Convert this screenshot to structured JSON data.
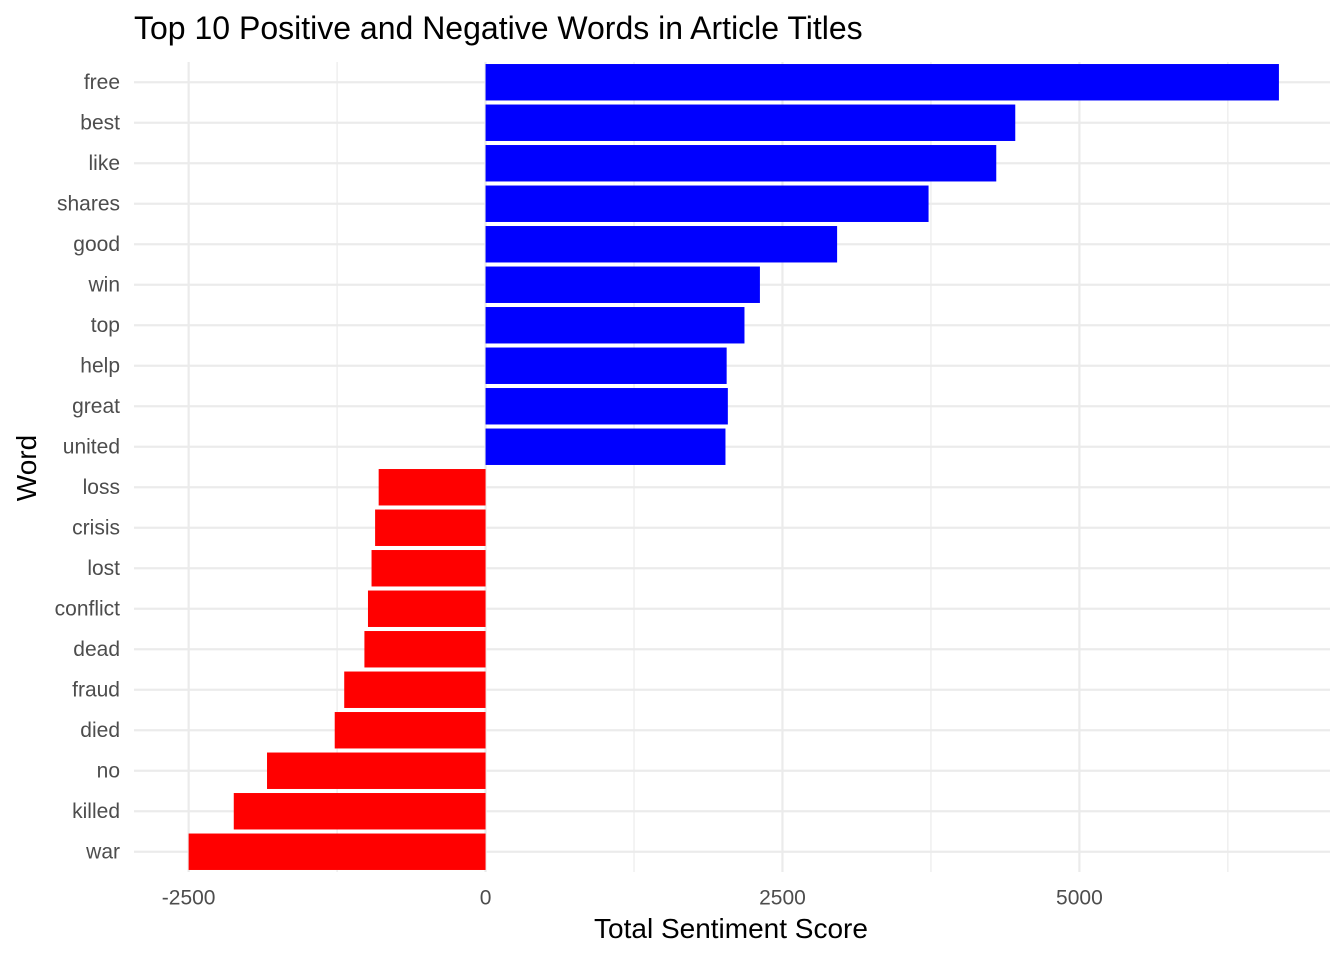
{
  "chart_data": {
    "type": "bar",
    "orientation": "horizontal",
    "title": "Top 10 Positive and Negative Words in Article Titles",
    "xlabel": "Total Sentiment Score",
    "ylabel": "Word",
    "categories": [
      "free",
      "best",
      "like",
      "shares",
      "good",
      "win",
      "top",
      "help",
      "great",
      "united",
      "loss",
      "crisis",
      "lost",
      "conflict",
      "dead",
      "fraud",
      "died",
      "no",
      "killed",
      "war"
    ],
    "values": [
      6680,
      4460,
      4300,
      3730,
      2960,
      2310,
      2180,
      2030,
      2040,
      2020,
      -900,
      -930,
      -960,
      -990,
      -1020,
      -1190,
      -1270,
      -1840,
      -2120,
      -2500
    ],
    "colors": {
      "positive": "#0000ff",
      "negative": "#ff0000",
      "grid": "#ebebeb",
      "tick_text": "#4d4d4d"
    },
    "xlim": [
      -2960,
      7110
    ],
    "x_ticks": [
      -2500,
      0,
      2500,
      5000
    ],
    "x_tick_labels": [
      "-2500",
      "0",
      "2500",
      "5000"
    ],
    "x_minor_ticks": [
      -1250,
      1250,
      3750,
      6250
    ],
    "grid": true,
    "legend": "none"
  }
}
